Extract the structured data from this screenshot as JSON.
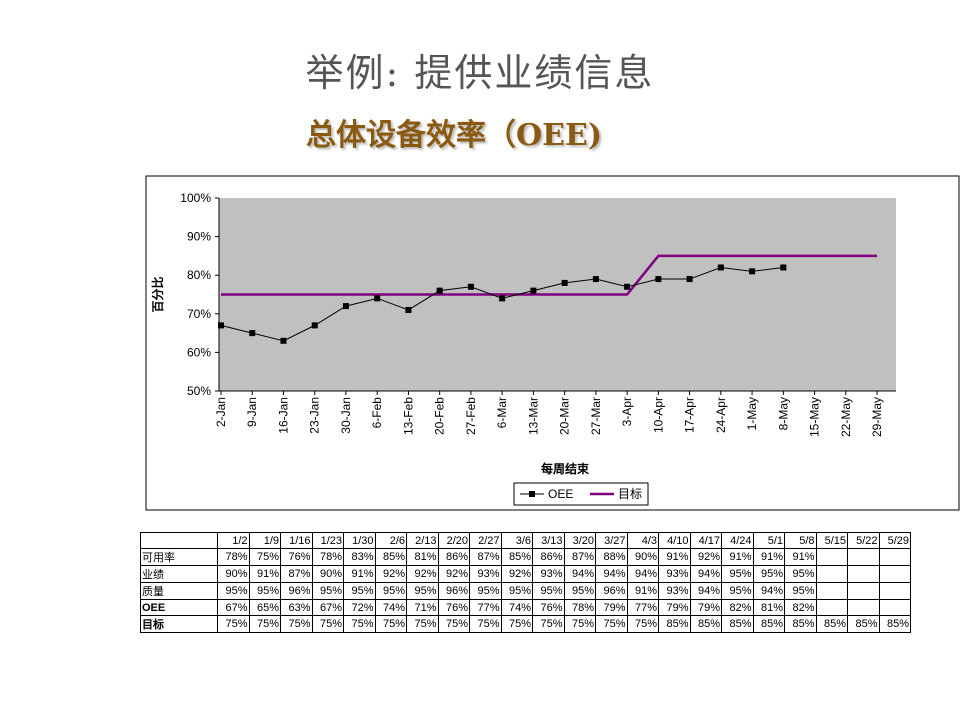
{
  "title": "举例: 提供业绩信息",
  "subtitle": "总体设备效率（OEE)",
  "chart_data": {
    "type": "line",
    "categories": [
      "2-Jan",
      "9-Jan",
      "16-Jan",
      "23-Jan",
      "30-Jan",
      "6-Feb",
      "13-Feb",
      "20-Feb",
      "27-Feb",
      "6-Mar",
      "13-Mar",
      "20-Mar",
      "27-Mar",
      "3-Apr",
      "10-Apr",
      "17-Apr",
      "24-Apr",
      "1-May",
      "8-May",
      "15-May",
      "22-May",
      "29-May"
    ],
    "series": [
      {
        "name": "OEE",
        "color": "#000000",
        "marker": "square",
        "values": [
          67,
          65,
          63,
          67,
          72,
          74,
          71,
          76,
          77,
          74,
          76,
          78,
          79,
          77,
          79,
          79,
          82,
          81,
          82,
          null,
          null,
          null
        ]
      },
      {
        "name": "目标",
        "color": "#800080",
        "marker": "none",
        "values": [
          75,
          75,
          75,
          75,
          75,
          75,
          75,
          75,
          75,
          75,
          75,
          75,
          75,
          75,
          85,
          85,
          85,
          85,
          85,
          85,
          85,
          85
        ]
      }
    ],
    "ylim": [
      50,
      100
    ],
    "yticks": [
      {
        "value": 50,
        "label": "50%"
      },
      {
        "value": 60,
        "label": "60%"
      },
      {
        "value": 70,
        "label": "70%"
      },
      {
        "value": 80,
        "label": "80%"
      },
      {
        "value": 90,
        "label": "90%"
      },
      {
        "value": 100,
        "label": "100%"
      }
    ],
    "ylabel": "百分比",
    "xlabel": "每周结束",
    "grid": false,
    "legend": "bottom",
    "plot_background": "#c0c0c0"
  },
  "table": {
    "columns": [
      "1/2",
      "1/9",
      "1/16",
      "1/23",
      "1/30",
      "2/6",
      "2/13",
      "2/20",
      "2/27",
      "3/6",
      "3/13",
      "3/20",
      "3/27",
      "4/3",
      "4/10",
      "4/17",
      "4/24",
      "5/1",
      "5/8",
      "5/15",
      "5/22",
      "5/29"
    ],
    "rows": [
      {
        "label": "可用率",
        "values": [
          "78%",
          "75%",
          "76%",
          "78%",
          "83%",
          "85%",
          "81%",
          "86%",
          "87%",
          "85%",
          "86%",
          "87%",
          "88%",
          "90%",
          "91%",
          "92%",
          "91%",
          "91%",
          "91%"
        ]
      },
      {
        "label": "业绩",
        "values": [
          "90%",
          "91%",
          "87%",
          "90%",
          "91%",
          "92%",
          "92%",
          "92%",
          "93%",
          "92%",
          "93%",
          "94%",
          "94%",
          "94%",
          "93%",
          "94%",
          "95%",
          "95%",
          "95%"
        ]
      },
      {
        "label": "质量",
        "values": [
          "95%",
          "95%",
          "96%",
          "95%",
          "95%",
          "95%",
          "95%",
          "96%",
          "95%",
          "95%",
          "95%",
          "95%",
          "96%",
          "91%",
          "93%",
          "94%",
          "95%",
          "94%",
          "95%"
        ]
      },
      {
        "label": "OEE",
        "values": [
          "67%",
          "65%",
          "63%",
          "67%",
          "72%",
          "74%",
          "71%",
          "76%",
          "77%",
          "74%",
          "76%",
          "78%",
          "79%",
          "77%",
          "79%",
          "79%",
          "82%",
          "81%",
          "82%"
        ]
      },
      {
        "label": "目标",
        "values": [
          "75%",
          "75%",
          "75%",
          "75%",
          "75%",
          "75%",
          "75%",
          "75%",
          "75%",
          "75%",
          "75%",
          "75%",
          "75%",
          "75%",
          "85%",
          "85%",
          "85%",
          "85%",
          "85%",
          "85%",
          "85%",
          "85%"
        ]
      }
    ]
  }
}
